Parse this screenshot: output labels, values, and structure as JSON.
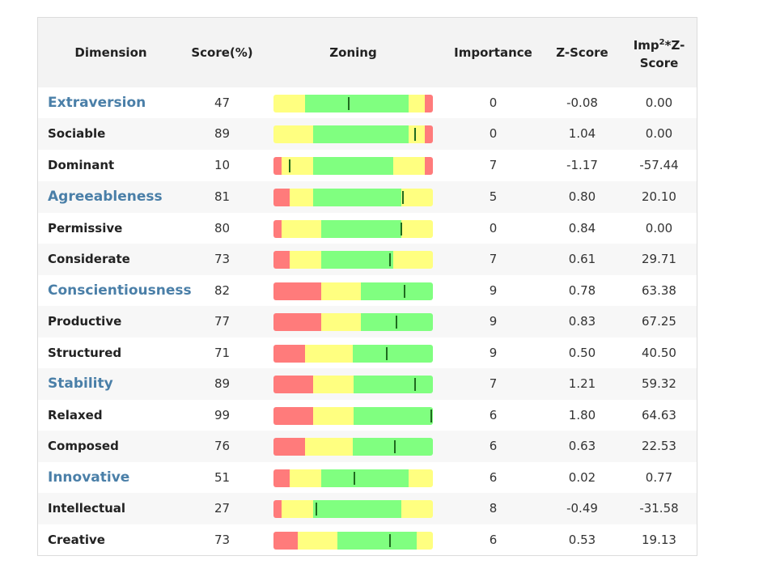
{
  "header": {
    "dimension": "Dimension",
    "score": "Score(%)",
    "zoning": "Zoning",
    "importance": "Importance",
    "zscore": "Z-Score",
    "imp_prefix": "Imp",
    "imp_sup": "2",
    "imp_suffix": "*Z-",
    "imp_line2": "Score"
  },
  "colors": {
    "red": "#ff7b7b",
    "yellow": "#ffff80",
    "green": "#80ff80",
    "marker": "#1f6b1f",
    "main_dimension": "#4a7fa8"
  },
  "rows": [
    {
      "name": "Extraversion",
      "main": true,
      "score": "47",
      "importance": "0",
      "z": "-0.08",
      "imp": "0.00",
      "zones": [
        [
          "yellow",
          20
        ],
        [
          "green",
          65
        ],
        [
          "yellow",
          10
        ],
        [
          "red",
          5
        ]
      ],
      "marker": 47
    },
    {
      "name": "Sociable",
      "main": false,
      "score": "89",
      "importance": "0",
      "z": "1.04",
      "imp": "0.00",
      "zones": [
        [
          "yellow",
          25
        ],
        [
          "green",
          60
        ],
        [
          "yellow",
          10
        ],
        [
          "red",
          5
        ]
      ],
      "marker": 89
    },
    {
      "name": "Dominant",
      "main": false,
      "score": "10",
      "importance": "7",
      "z": "-1.17",
      "imp": "-57.44",
      "zones": [
        [
          "red",
          5
        ],
        [
          "yellow",
          20
        ],
        [
          "green",
          50
        ],
        [
          "yellow",
          20
        ],
        [
          "red",
          5
        ]
      ],
      "marker": 10
    },
    {
      "name": "Agreeableness",
      "main": true,
      "score": "81",
      "importance": "5",
      "z": "0.80",
      "imp": "20.10",
      "zones": [
        [
          "red",
          10
        ],
        [
          "yellow",
          15
        ],
        [
          "green",
          55
        ],
        [
          "yellow",
          20
        ]
      ],
      "marker": 81
    },
    {
      "name": "Permissive",
      "main": false,
      "score": "80",
      "importance": "0",
      "z": "0.84",
      "imp": "0.00",
      "zones": [
        [
          "red",
          5
        ],
        [
          "yellow",
          25
        ],
        [
          "green",
          50
        ],
        [
          "yellow",
          20
        ]
      ],
      "marker": 80
    },
    {
      "name": "Considerate",
      "main": false,
      "score": "73",
      "importance": "7",
      "z": "0.61",
      "imp": "29.71",
      "zones": [
        [
          "red",
          10
        ],
        [
          "yellow",
          20
        ],
        [
          "green",
          45
        ],
        [
          "yellow",
          25
        ]
      ],
      "marker": 73
    },
    {
      "name": "Conscientiousness",
      "main": true,
      "score": "82",
      "importance": "9",
      "z": "0.78",
      "imp": "63.38",
      "zones": [
        [
          "red",
          30
        ],
        [
          "yellow",
          25
        ],
        [
          "green",
          45
        ]
      ],
      "marker": 82
    },
    {
      "name": "Productive",
      "main": false,
      "score": "77",
      "importance": "9",
      "z": "0.83",
      "imp": "67.25",
      "zones": [
        [
          "red",
          30
        ],
        [
          "yellow",
          25
        ],
        [
          "green",
          45
        ]
      ],
      "marker": 77
    },
    {
      "name": "Structured",
      "main": false,
      "score": "71",
      "importance": "9",
      "z": "0.50",
      "imp": "40.50",
      "zones": [
        [
          "red",
          20
        ],
        [
          "yellow",
          30
        ],
        [
          "green",
          50
        ]
      ],
      "marker": 71
    },
    {
      "name": "Stability",
      "main": true,
      "score": "89",
      "importance": "7",
      "z": "1.21",
      "imp": "59.32",
      "zones": [
        [
          "red",
          25
        ],
        [
          "yellow",
          25
        ],
        [
          "green",
          50
        ]
      ],
      "marker": 89
    },
    {
      "name": "Relaxed",
      "main": false,
      "score": "99",
      "importance": "6",
      "z": "1.80",
      "imp": "64.63",
      "zones": [
        [
          "red",
          25
        ],
        [
          "yellow",
          25
        ],
        [
          "green",
          50
        ]
      ],
      "marker": 99
    },
    {
      "name": "Composed",
      "main": false,
      "score": "76",
      "importance": "6",
      "z": "0.63",
      "imp": "22.53",
      "zones": [
        [
          "red",
          20
        ],
        [
          "yellow",
          30
        ],
        [
          "green",
          50
        ]
      ],
      "marker": 76
    },
    {
      "name": "Innovative",
      "main": true,
      "score": "51",
      "importance": "6",
      "z": "0.02",
      "imp": "0.77",
      "zones": [
        [
          "red",
          10
        ],
        [
          "yellow",
          20
        ],
        [
          "green",
          55
        ],
        [
          "yellow",
          15
        ]
      ],
      "marker": 51
    },
    {
      "name": "Intellectual",
      "main": false,
      "score": "27",
      "importance": "8",
      "z": "-0.49",
      "imp": "-31.58",
      "zones": [
        [
          "red",
          5
        ],
        [
          "yellow",
          20
        ],
        [
          "green",
          55
        ],
        [
          "yellow",
          20
        ]
      ],
      "marker": 27
    },
    {
      "name": "Creative",
      "main": false,
      "score": "73",
      "importance": "6",
      "z": "0.53",
      "imp": "19.13",
      "zones": [
        [
          "red",
          15
        ],
        [
          "yellow",
          25
        ],
        [
          "green",
          50
        ],
        [
          "yellow",
          10
        ]
      ],
      "marker": 73
    }
  ]
}
